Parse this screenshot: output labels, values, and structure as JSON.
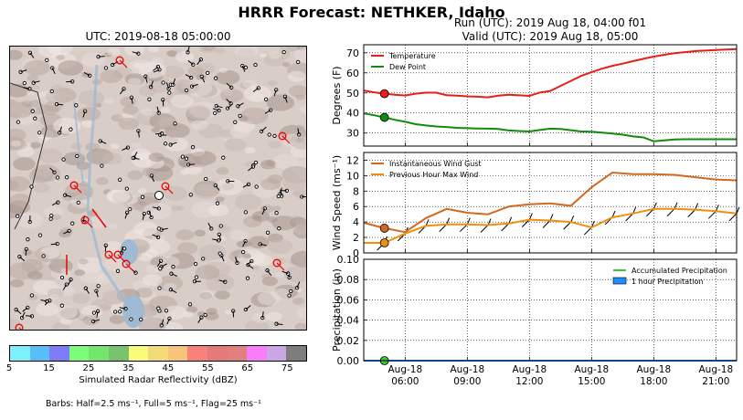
{
  "title": "HRRR Forecast: NETHKER, Idaho",
  "map": {
    "title": "UTC: 2019-08-18 05:00:00"
  },
  "run_info": {
    "line1": "Run (UTC): 2019 Aug 18, 04:00 f01",
    "line2": "Valid (UTC): 2019 Aug 18, 05:00"
  },
  "colorbar": {
    "label": "Simulated Radar Reflectivity (dBZ)",
    "ticks": [
      "5",
      "15",
      "25",
      "35",
      "45",
      "55",
      "65",
      "75"
    ],
    "colors": [
      "#7ef0fb",
      "#58bdf9",
      "#7e7cf5",
      "#7dfb7b",
      "#74e56d",
      "#79c36d",
      "#fafb7b",
      "#f2dc7a",
      "#f7c47a",
      "#f9817c",
      "#e57a7a",
      "#e0807f",
      "#f77ef8",
      "#c9a7e5",
      "#7d7d7d"
    ]
  },
  "barbs_note": "Barbs: Half=2.5 ms⁻¹, Full=5 ms⁻¹, Flag=25 ms⁻¹",
  "chart_data": [
    {
      "type": "line",
      "ylabel": "Degrees (F)",
      "ylim": [
        23.5,
        74
      ],
      "yticks": [
        30,
        40,
        50,
        60,
        70
      ],
      "x": [
        4.0,
        4.5,
        5.0,
        5.5,
        6.0,
        6.5,
        7.0,
        7.5,
        8.0,
        8.5,
        9.0,
        9.5,
        10.0,
        10.5,
        11.0,
        11.5,
        12.0,
        12.5,
        13.0,
        13.5,
        14.0,
        14.5,
        15.0,
        15.5,
        16.0,
        16.5,
        17.0,
        17.5,
        18.0,
        18.5,
        19.0,
        19.5,
        20.0,
        20.5,
        21.0,
        21.5,
        22.0
      ],
      "series": [
        {
          "name": "Temperature",
          "color": "#e81e18",
          "values": [
            51.2,
            50.3,
            49.6,
            49.1,
            48.7,
            49.6,
            50.1,
            50.1,
            48.9,
            48.6,
            48.3,
            48.1,
            47.8,
            48.6,
            49.1,
            48.8,
            48.5,
            50.2,
            51.0,
            53.5,
            56.0,
            58.5,
            60.3,
            62.1,
            63.5,
            64.6,
            65.8,
            67.0,
            68.1,
            69.0,
            69.8,
            70.3,
            70.8,
            71.1,
            71.4,
            71.6,
            71.8
          ]
        },
        {
          "name": "Dew Point",
          "color": "#118a0d",
          "values": [
            39.8,
            38.9,
            37.8,
            36.6,
            35.6,
            34.4,
            33.8,
            33.3,
            33.0,
            32.6,
            32.4,
            32.3,
            32.2,
            32.0,
            31.3,
            31.0,
            30.8,
            31.5,
            32.2,
            32.0,
            31.4,
            30.8,
            30.7,
            30.2,
            29.8,
            29.2,
            28.3,
            27.8,
            25.9,
            26.3,
            26.8,
            26.9,
            26.9,
            26.9,
            26.9,
            26.9,
            26.9
          ]
        }
      ],
      "markers": [
        {
          "series": "Temperature",
          "x": 5.0,
          "y": 49.6
        },
        {
          "series": "Dew Point",
          "x": 5.0,
          "y": 37.8
        }
      ],
      "legend": "upper-left",
      "grid": true
    },
    {
      "type": "line",
      "ylabel": "Wind Speed (ms⁻¹)",
      "ylim": [
        0,
        13
      ],
      "yticks": [
        0,
        2,
        4,
        6,
        8,
        10,
        12
      ],
      "x": [
        4.0,
        5.0,
        6.0,
        7.0,
        8.0,
        9.0,
        10.0,
        11.0,
        12.0,
        13.0,
        14.0,
        15.0,
        16.0,
        17.0,
        18.0,
        19.0,
        20.0,
        21.0,
        22.0
      ],
      "series": [
        {
          "name": "Instantaneous Wind Gust",
          "color": "#d2691e",
          "values": [
            3.9,
            3.2,
            2.7,
            4.5,
            5.7,
            5.2,
            5.0,
            6.0,
            6.3,
            6.4,
            6.1,
            8.5,
            10.4,
            10.2,
            10.2,
            10.1,
            9.8,
            9.5,
            9.4
          ]
        },
        {
          "name": "Previous Hour Max Wind",
          "color": "#f28e0e",
          "values": [
            1.3,
            1.3,
            2.5,
            3.5,
            3.7,
            3.7,
            3.6,
            3.8,
            4.3,
            4.2,
            4.0,
            3.3,
            4.6,
            5.1,
            5.7,
            5.7,
            5.6,
            5.4,
            5.1
          ]
        }
      ],
      "markers": [
        {
          "series": "Instantaneous Wind Gust",
          "x": 5.0,
          "y": 3.2
        },
        {
          "series": "Previous Hour Max Wind",
          "x": 5.0,
          "y": 1.3
        }
      ],
      "legend": "upper-left",
      "grid": true
    },
    {
      "type": "line",
      "ylabel": "Precipitation (in)",
      "ylim": [
        0,
        0.1
      ],
      "yticks": [
        "0.00",
        "0.02",
        "0.04",
        "0.06",
        "0.08",
        "0.10"
      ],
      "x": [
        4.0,
        22.0
      ],
      "series": [
        {
          "name": "Accumulated Precipitation",
          "color": "#3fc43f",
          "values": [
            0.0,
            0.0
          ]
        },
        {
          "name": "1 hour Precipitation",
          "color": "#1e8fff",
          "values": [
            0.0,
            0.0
          ]
        }
      ],
      "markers": [
        {
          "series": "Accumulated Precipitation",
          "x": 5.0,
          "y": 0.0
        }
      ],
      "legend": "upper-right",
      "grid": true
    }
  ],
  "time_axis": {
    "xlim": [
      4.0,
      22.0
    ],
    "ticks": [
      {
        "x": 6,
        "date": "Aug-18",
        "time": "06:00"
      },
      {
        "x": 9,
        "date": "Aug-18",
        "time": "09:00"
      },
      {
        "x": 12,
        "date": "Aug-18",
        "time": "12:00"
      },
      {
        "x": 15,
        "date": "Aug-18",
        "time": "15:00"
      },
      {
        "x": 18,
        "date": "Aug-18",
        "time": "18:00"
      },
      {
        "x": 21,
        "date": "Aug-18",
        "time": "21:00"
      }
    ]
  }
}
